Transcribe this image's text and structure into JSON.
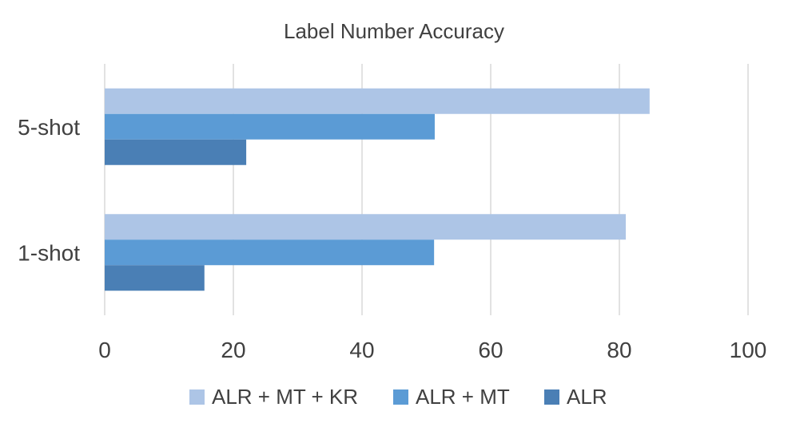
{
  "chart_data": {
    "type": "bar",
    "orientation": "horizontal",
    "title": "Label Number Accuracy",
    "categories": [
      "1-shot",
      "5-shot"
    ],
    "series": [
      {
        "name": "ALR",
        "color": "#4a7fb5",
        "values": [
          15.5,
          22
        ]
      },
      {
        "name": "ALR + MT",
        "color": "#5b9bd5",
        "values": [
          51.2,
          51.3
        ]
      },
      {
        "name": "ALR + MT + KR",
        "color": "#adc5e6",
        "values": [
          81,
          84.7
        ]
      }
    ],
    "x_ticks": [
      "0",
      "20",
      "40",
      "60",
      "80",
      "100"
    ],
    "xlim": [
      0,
      100
    ],
    "grid": true,
    "legend_position": "bottom"
  }
}
